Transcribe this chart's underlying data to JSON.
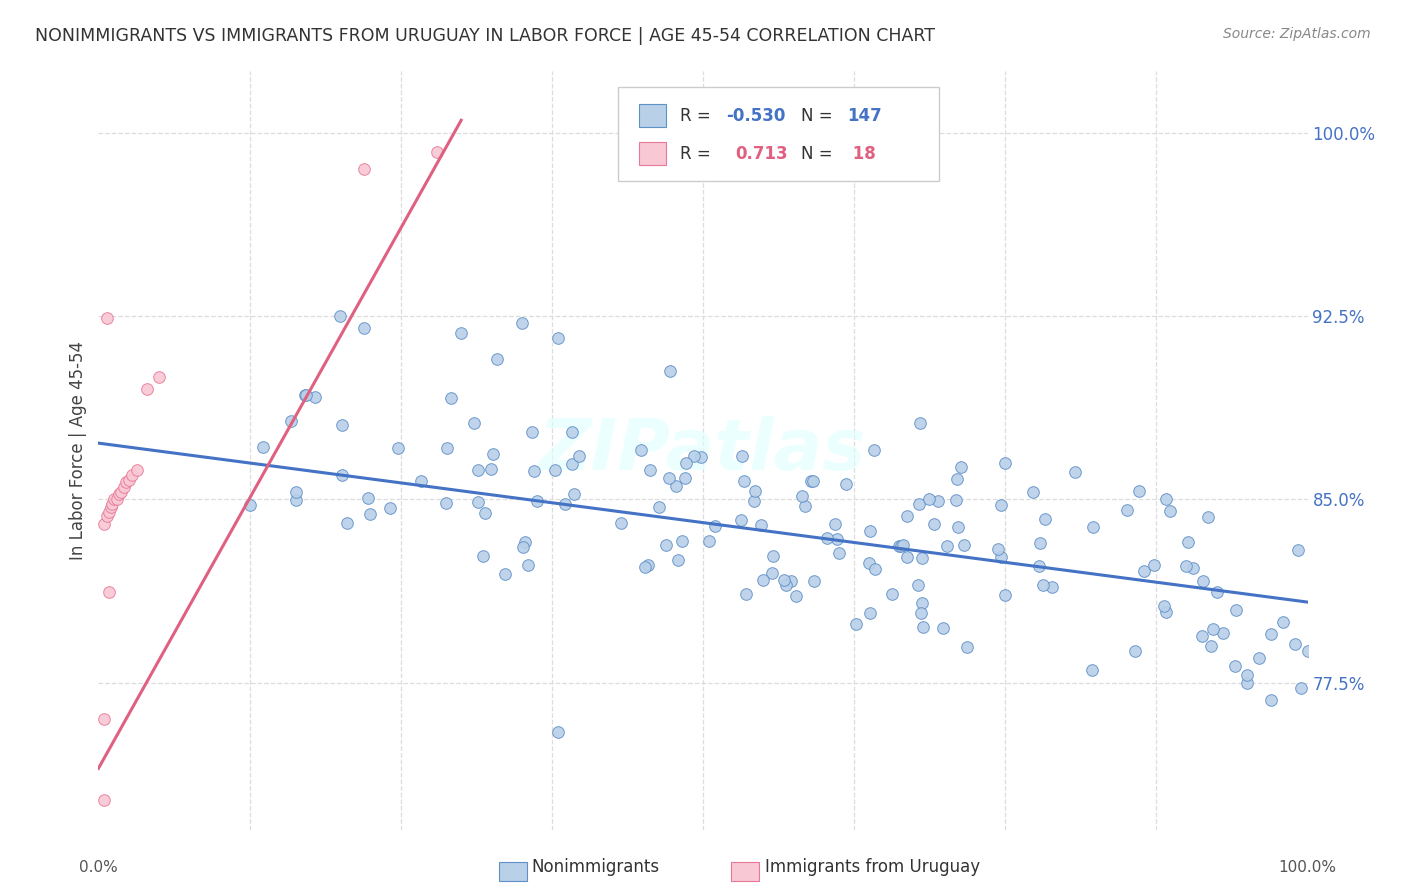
{
  "title": "NONIMMIGRANTS VS IMMIGRANTS FROM URUGUAY IN LABOR FORCE | AGE 45-54 CORRELATION CHART",
  "source": "Source: ZipAtlas.com",
  "ylabel": "In Labor Force | Age 45-54",
  "nonimmigrant_label": "Nonimmigrants",
  "immigrant_label": "Immigrants from Uruguay",
  "blue_color": "#b8d0e8",
  "blue_edge_color": "#6090c8",
  "blue_line_color": "#4472c4",
  "pink_color": "#f8c8d4",
  "pink_edge_color": "#e87898",
  "pink_line_color": "#e06080",
  "legend_R_blue": "-0.530",
  "legend_N_blue": "147",
  "legend_R_pink": "0.713",
  "legend_N_pink": "18",
  "xmin": 0.0,
  "xmax": 1.0,
  "ymin": 0.715,
  "ymax": 1.025,
  "ytick_values": [
    0.775,
    0.85,
    0.925,
    1.0
  ],
  "ytick_labels": [
    "77.5%",
    "85.0%",
    "92.5%",
    "100.0%"
  ],
  "blue_trend_x0": 0.0,
  "blue_trend_x1": 1.0,
  "blue_trend_y0": 0.873,
  "blue_trend_y1": 0.808,
  "pink_trend_x0": 0.0,
  "pink_trend_x1": 0.3,
  "pink_trend_y0": 0.74,
  "pink_trend_y1": 1.005,
  "watermark": "ZIPatlas",
  "grid_color": "#dddddd",
  "background_color": "#ffffff",
  "title_color": "#333333",
  "source_color": "#888888",
  "tick_label_color": "#4472c4"
}
